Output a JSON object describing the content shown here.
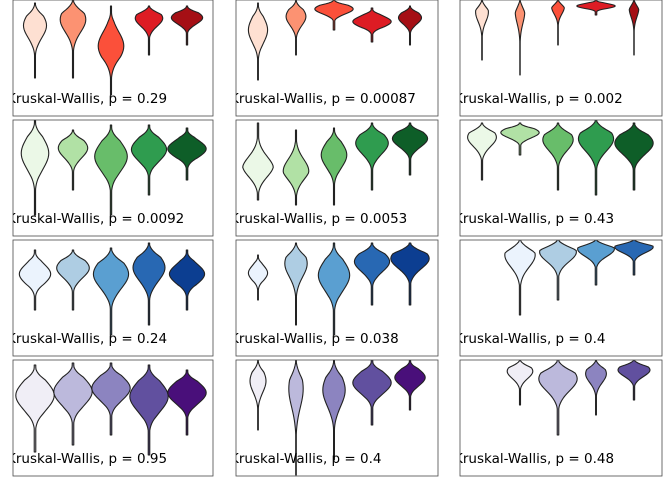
{
  "chart_data": {
    "type": "violin",
    "layout": {
      "rows": 4,
      "cols": 3
    },
    "panels": [
      {
        "row": 0,
        "col": 0,
        "palette": "Reds",
        "label": "Kruskal-Wallis, p = 0.29",
        "violins": [
          {
            "top": 3,
            "bottom": 78,
            "width": 0.72,
            "peak": 0.3,
            "colorIndex": 0
          },
          {
            "top": 0,
            "bottom": 78,
            "width": 0.8,
            "peak": 0.25,
            "colorIndex": 1
          },
          {
            "top": 6,
            "bottom": 95,
            "width": 0.8,
            "peak": 0.45,
            "colorIndex": 2
          },
          {
            "top": 6,
            "bottom": 55,
            "width": 0.86,
            "peak": 0.25,
            "colorIndex": 3
          },
          {
            "top": 6,
            "bottom": 45,
            "width": 0.98,
            "peak": 0.3,
            "colorIndex": 4
          }
        ]
      },
      {
        "row": 0,
        "col": 1,
        "palette": "Reds",
        "label": "Kruskal-Wallis, p = 0.00087",
        "violins": [
          {
            "top": 3,
            "bottom": 80,
            "width": 0.6,
            "peak": 0.35,
            "colorIndex": 0
          },
          {
            "top": 0,
            "bottom": 55,
            "width": 0.62,
            "peak": 0.3,
            "colorIndex": 1
          },
          {
            "top": 0,
            "bottom": 30,
            "width": 1.2,
            "peak": 0.3,
            "colorIndex": 2
          },
          {
            "top": 8,
            "bottom": 42,
            "width": 1.2,
            "peak": 0.4,
            "colorIndex": 3
          },
          {
            "top": 6,
            "bottom": 45,
            "width": 0.72,
            "peak": 0.3,
            "colorIndex": 4
          }
        ]
      },
      {
        "row": 0,
        "col": 2,
        "palette": "Reds",
        "label": "Kruskal-Wallis, p = 0.002",
        "violins": [
          {
            "top": 0,
            "bottom": 60,
            "width": 0.4,
            "peak": 0.2,
            "colorIndex": 0
          },
          {
            "top": 0,
            "bottom": 75,
            "width": 0.3,
            "peak": 0.15,
            "colorIndex": 1
          },
          {
            "top": 0,
            "bottom": 45,
            "width": 0.4,
            "peak": 0.15,
            "colorIndex": 2
          },
          {
            "top": 0,
            "bottom": 15,
            "width": 1.2,
            "peak": 0.4,
            "colorIndex": 3
          },
          {
            "top": 0,
            "bottom": 55,
            "width": 0.3,
            "peak": 0.15,
            "colorIndex": 4
          }
        ]
      },
      {
        "row": 1,
        "col": 0,
        "palette": "Greens",
        "label": "Kruskal-Wallis, p = 0.0092",
        "violins": [
          {
            "top": 0,
            "bottom": 95,
            "width": 0.86,
            "peak": 0.35,
            "colorIndex": 0
          },
          {
            "top": 10,
            "bottom": 70,
            "width": 0.92,
            "peak": 0.3,
            "colorIndex": 1
          },
          {
            "top": 5,
            "bottom": 95,
            "width": 1.02,
            "peak": 0.35,
            "colorIndex": 2
          },
          {
            "top": 5,
            "bottom": 75,
            "width": 1.1,
            "peak": 0.35,
            "colorIndex": 3
          },
          {
            "top": 8,
            "bottom": 60,
            "width": 1.2,
            "peak": 0.4,
            "colorIndex": 4
          }
        ]
      },
      {
        "row": 1,
        "col": 1,
        "palette": "Greens",
        "label": "Kruskal-Wallis, p = 0.0053",
        "violins": [
          {
            "top": 3,
            "bottom": 80,
            "width": 0.98,
            "peak": 0.6,
            "colorIndex": 0
          },
          {
            "top": 10,
            "bottom": 85,
            "width": 0.8,
            "peak": 0.55,
            "colorIndex": 1
          },
          {
            "top": 8,
            "bottom": 85,
            "width": 0.8,
            "peak": 0.35,
            "colorIndex": 2
          },
          {
            "top": 3,
            "bottom": 70,
            "width": 1.02,
            "peak": 0.3,
            "colorIndex": 3
          },
          {
            "top": 3,
            "bottom": 55,
            "width": 1.1,
            "peak": 0.3,
            "colorIndex": 4
          }
        ]
      },
      {
        "row": 1,
        "col": 2,
        "palette": "Greens",
        "label": "Kruskal-Wallis, p = 0.43",
        "violins": [
          {
            "top": 3,
            "bottom": 60,
            "width": 0.9,
            "peak": 0.25,
            "colorIndex": 0
          },
          {
            "top": 3,
            "bottom": 35,
            "width": 1.2,
            "peak": 0.3,
            "colorIndex": 1
          },
          {
            "top": 3,
            "bottom": 70,
            "width": 0.95,
            "peak": 0.25,
            "colorIndex": 2
          },
          {
            "top": 0,
            "bottom": 75,
            "width": 1.1,
            "peak": 0.25,
            "colorIndex": 3
          },
          {
            "top": 3,
            "bottom": 70,
            "width": 1.2,
            "peak": 0.3,
            "colorIndex": 4
          }
        ]
      },
      {
        "row": 2,
        "col": 0,
        "palette": "Blues",
        "label": "Kruskal-Wallis, p = 0.24",
        "violins": [
          {
            "top": 10,
            "bottom": 70,
            "width": 0.98,
            "peak": 0.4,
            "colorIndex": 0
          },
          {
            "top": 10,
            "bottom": 70,
            "width": 1.02,
            "peak": 0.3,
            "colorIndex": 1
          },
          {
            "top": 8,
            "bottom": 95,
            "width": 1.1,
            "peak": 0.3,
            "colorIndex": 2
          },
          {
            "top": 3,
            "bottom": 85,
            "width": 1.0,
            "peak": 0.3,
            "colorIndex": 3
          },
          {
            "top": 10,
            "bottom": 70,
            "width": 1.1,
            "peak": 0.4,
            "colorIndex": 4
          }
        ]
      },
      {
        "row": 2,
        "col": 1,
        "palette": "Blues",
        "label": "Kruskal-Wallis, p = 0.038",
        "violins": [
          {
            "top": 15,
            "bottom": 60,
            "width": 0.6,
            "peak": 0.4,
            "colorIndex": 0
          },
          {
            "top": 3,
            "bottom": 85,
            "width": 0.7,
            "peak": 0.25,
            "colorIndex": 1
          },
          {
            "top": 3,
            "bottom": 95,
            "width": 0.98,
            "peak": 0.35,
            "colorIndex": 2
          },
          {
            "top": 3,
            "bottom": 65,
            "width": 1.1,
            "peak": 0.3,
            "colorIndex": 3
          },
          {
            "top": 3,
            "bottom": 65,
            "width": 1.2,
            "peak": 0.25,
            "colorIndex": 4
          }
        ]
      },
      {
        "row": 2,
        "col": 2,
        "palette": "Blues",
        "label": "Kruskal-Wallis, p = 0.4",
        "violins": [
          {
            "top": 0,
            "bottom": 75,
            "width": 0.95,
            "peak": 0.2,
            "colorIndex": 0
          },
          {
            "top": 0,
            "bottom": 60,
            "width": 1.15,
            "peak": 0.2,
            "colorIndex": 1
          },
          {
            "top": 0,
            "bottom": 45,
            "width": 1.15,
            "peak": 0.2,
            "colorIndex": 2
          },
          {
            "top": 0,
            "bottom": 35,
            "width": 1.2,
            "peak": 0.2,
            "colorIndex": 3
          }
        ]
      },
      {
        "row": 3,
        "col": 0,
        "palette": "Purples",
        "label": "Kruskal-Wallis, p = 0.95",
        "violins": [
          {
            "top": 5,
            "bottom": 92,
            "width": 1.2,
            "peak": 0.35,
            "colorIndex": 0
          },
          {
            "top": 3,
            "bottom": 85,
            "width": 1.2,
            "peak": 0.35,
            "colorIndex": 1
          },
          {
            "top": 3,
            "bottom": 75,
            "width": 1.2,
            "peak": 0.35,
            "colorIndex": 2
          },
          {
            "top": 5,
            "bottom": 95,
            "width": 1.2,
            "peak": 0.35,
            "colorIndex": 3
          },
          {
            "top": 10,
            "bottom": 75,
            "width": 1.2,
            "peak": 0.35,
            "colorIndex": 4
          }
        ]
      },
      {
        "row": 3,
        "col": 1,
        "palette": "Purples",
        "label": "Kruskal-Wallis, p = 0.4",
        "violins": [
          {
            "top": 0,
            "bottom": 70,
            "width": 0.5,
            "peak": 0.3,
            "colorIndex": 0
          },
          {
            "top": 0,
            "bottom": 115,
            "width": 0.45,
            "peak": 0.25,
            "colorIndex": 1
          },
          {
            "top": 0,
            "bottom": 100,
            "width": 0.7,
            "peak": 0.3,
            "colorIndex": 2
          },
          {
            "top": 0,
            "bottom": 65,
            "width": 1.2,
            "peak": 0.35,
            "colorIndex": 3
          },
          {
            "top": 0,
            "bottom": 50,
            "width": 0.95,
            "peak": 0.35,
            "colorIndex": 4
          }
        ]
      },
      {
        "row": 3,
        "col": 2,
        "palette": "Purples",
        "label": "Kruskal-Wallis, p = 0.48",
        "violins": [
          {
            "top": 0,
            "bottom": 45,
            "width": 0.8,
            "peak": 0.25,
            "colorIndex": 0
          },
          {
            "top": 0,
            "bottom": 75,
            "width": 1.2,
            "peak": 0.25,
            "colorIndex": 1
          },
          {
            "top": 0,
            "bottom": 55,
            "width": 0.65,
            "peak": 0.25,
            "colorIndex": 2
          },
          {
            "top": 0,
            "bottom": 40,
            "width": 1.0,
            "peak": 0.25,
            "colorIndex": 3
          }
        ]
      }
    ],
    "palettes": {
      "Reds": [
        "#fee0d2",
        "#fc9272",
        "#fb503a",
        "#dd1c24",
        "#a50f15"
      ],
      "Greens": [
        "#ebf8e7",
        "#b1e1a5",
        "#68bd6a",
        "#2f9c4f",
        "#0e5e28"
      ],
      "Blues": [
        "#ebf3fd",
        "#aecde3",
        "#5a9fd1",
        "#2868b3",
        "#0c3e91"
      ],
      "Purples": [
        "#f0eef6",
        "#bcb9dc",
        "#8c84c0",
        "#61509f",
        "#490f7a"
      ]
    }
  }
}
